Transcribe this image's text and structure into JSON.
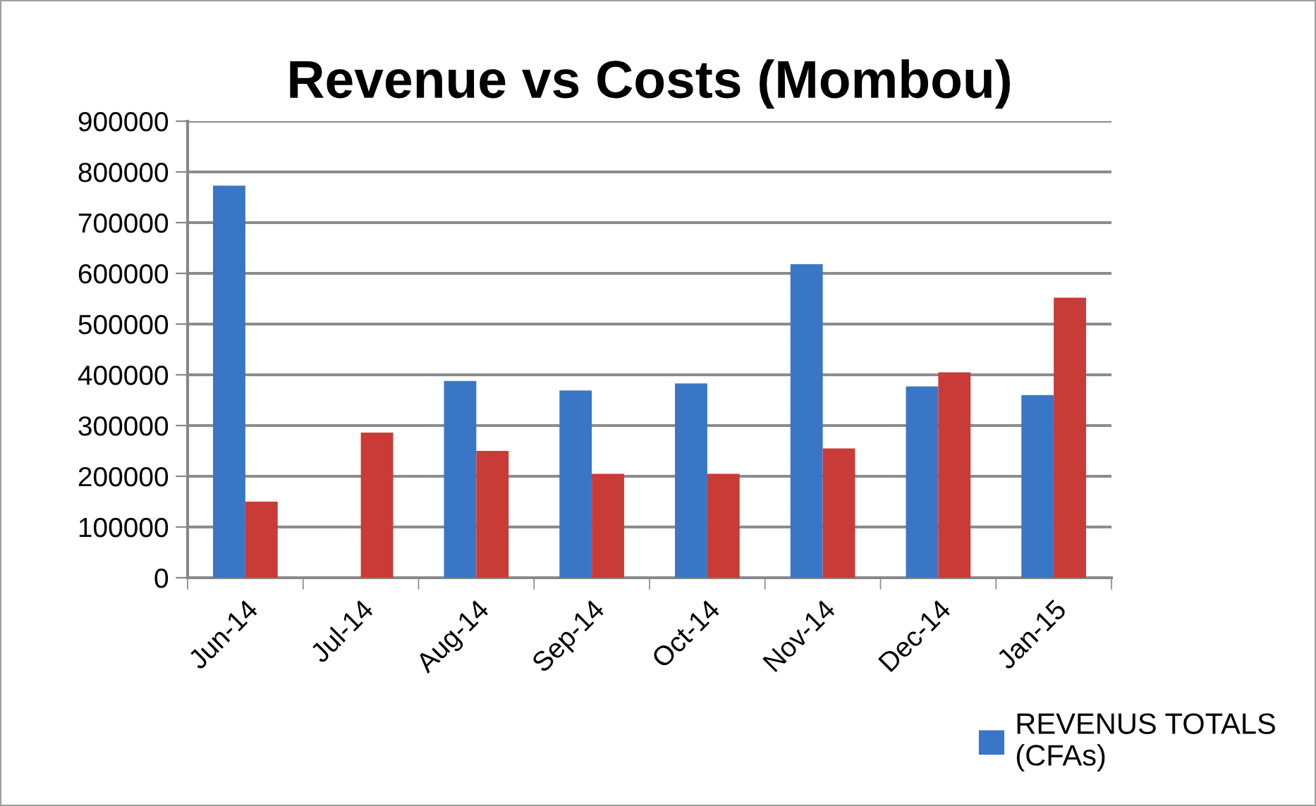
{
  "chart_data": {
    "type": "bar",
    "title": "Revenue vs Costs (Mombou)",
    "categories": [
      "Jun-14",
      "Jul-14",
      "Aug-14",
      "Sep-14",
      "Oct-14",
      "Nov-14",
      "Dec-14",
      "Jan-15"
    ],
    "series": [
      {
        "name": "REVENUS TOTALS\n(CFAs)",
        "color": "#3a76c6",
        "values": [
          773000,
          null,
          388000,
          369000,
          383000,
          618000,
          377000,
          360000
        ]
      },
      {
        "color": "#c93b37",
        "values": [
          150000,
          286000,
          250000,
          205000,
          205000,
          255000,
          405000,
          552000
        ]
      }
    ],
    "ylim": [
      0,
      900000
    ],
    "yticks": [
      0,
      100000,
      200000,
      300000,
      400000,
      500000,
      600000,
      700000,
      800000,
      900000
    ],
    "grid": "y",
    "legend": "bottom right"
  }
}
